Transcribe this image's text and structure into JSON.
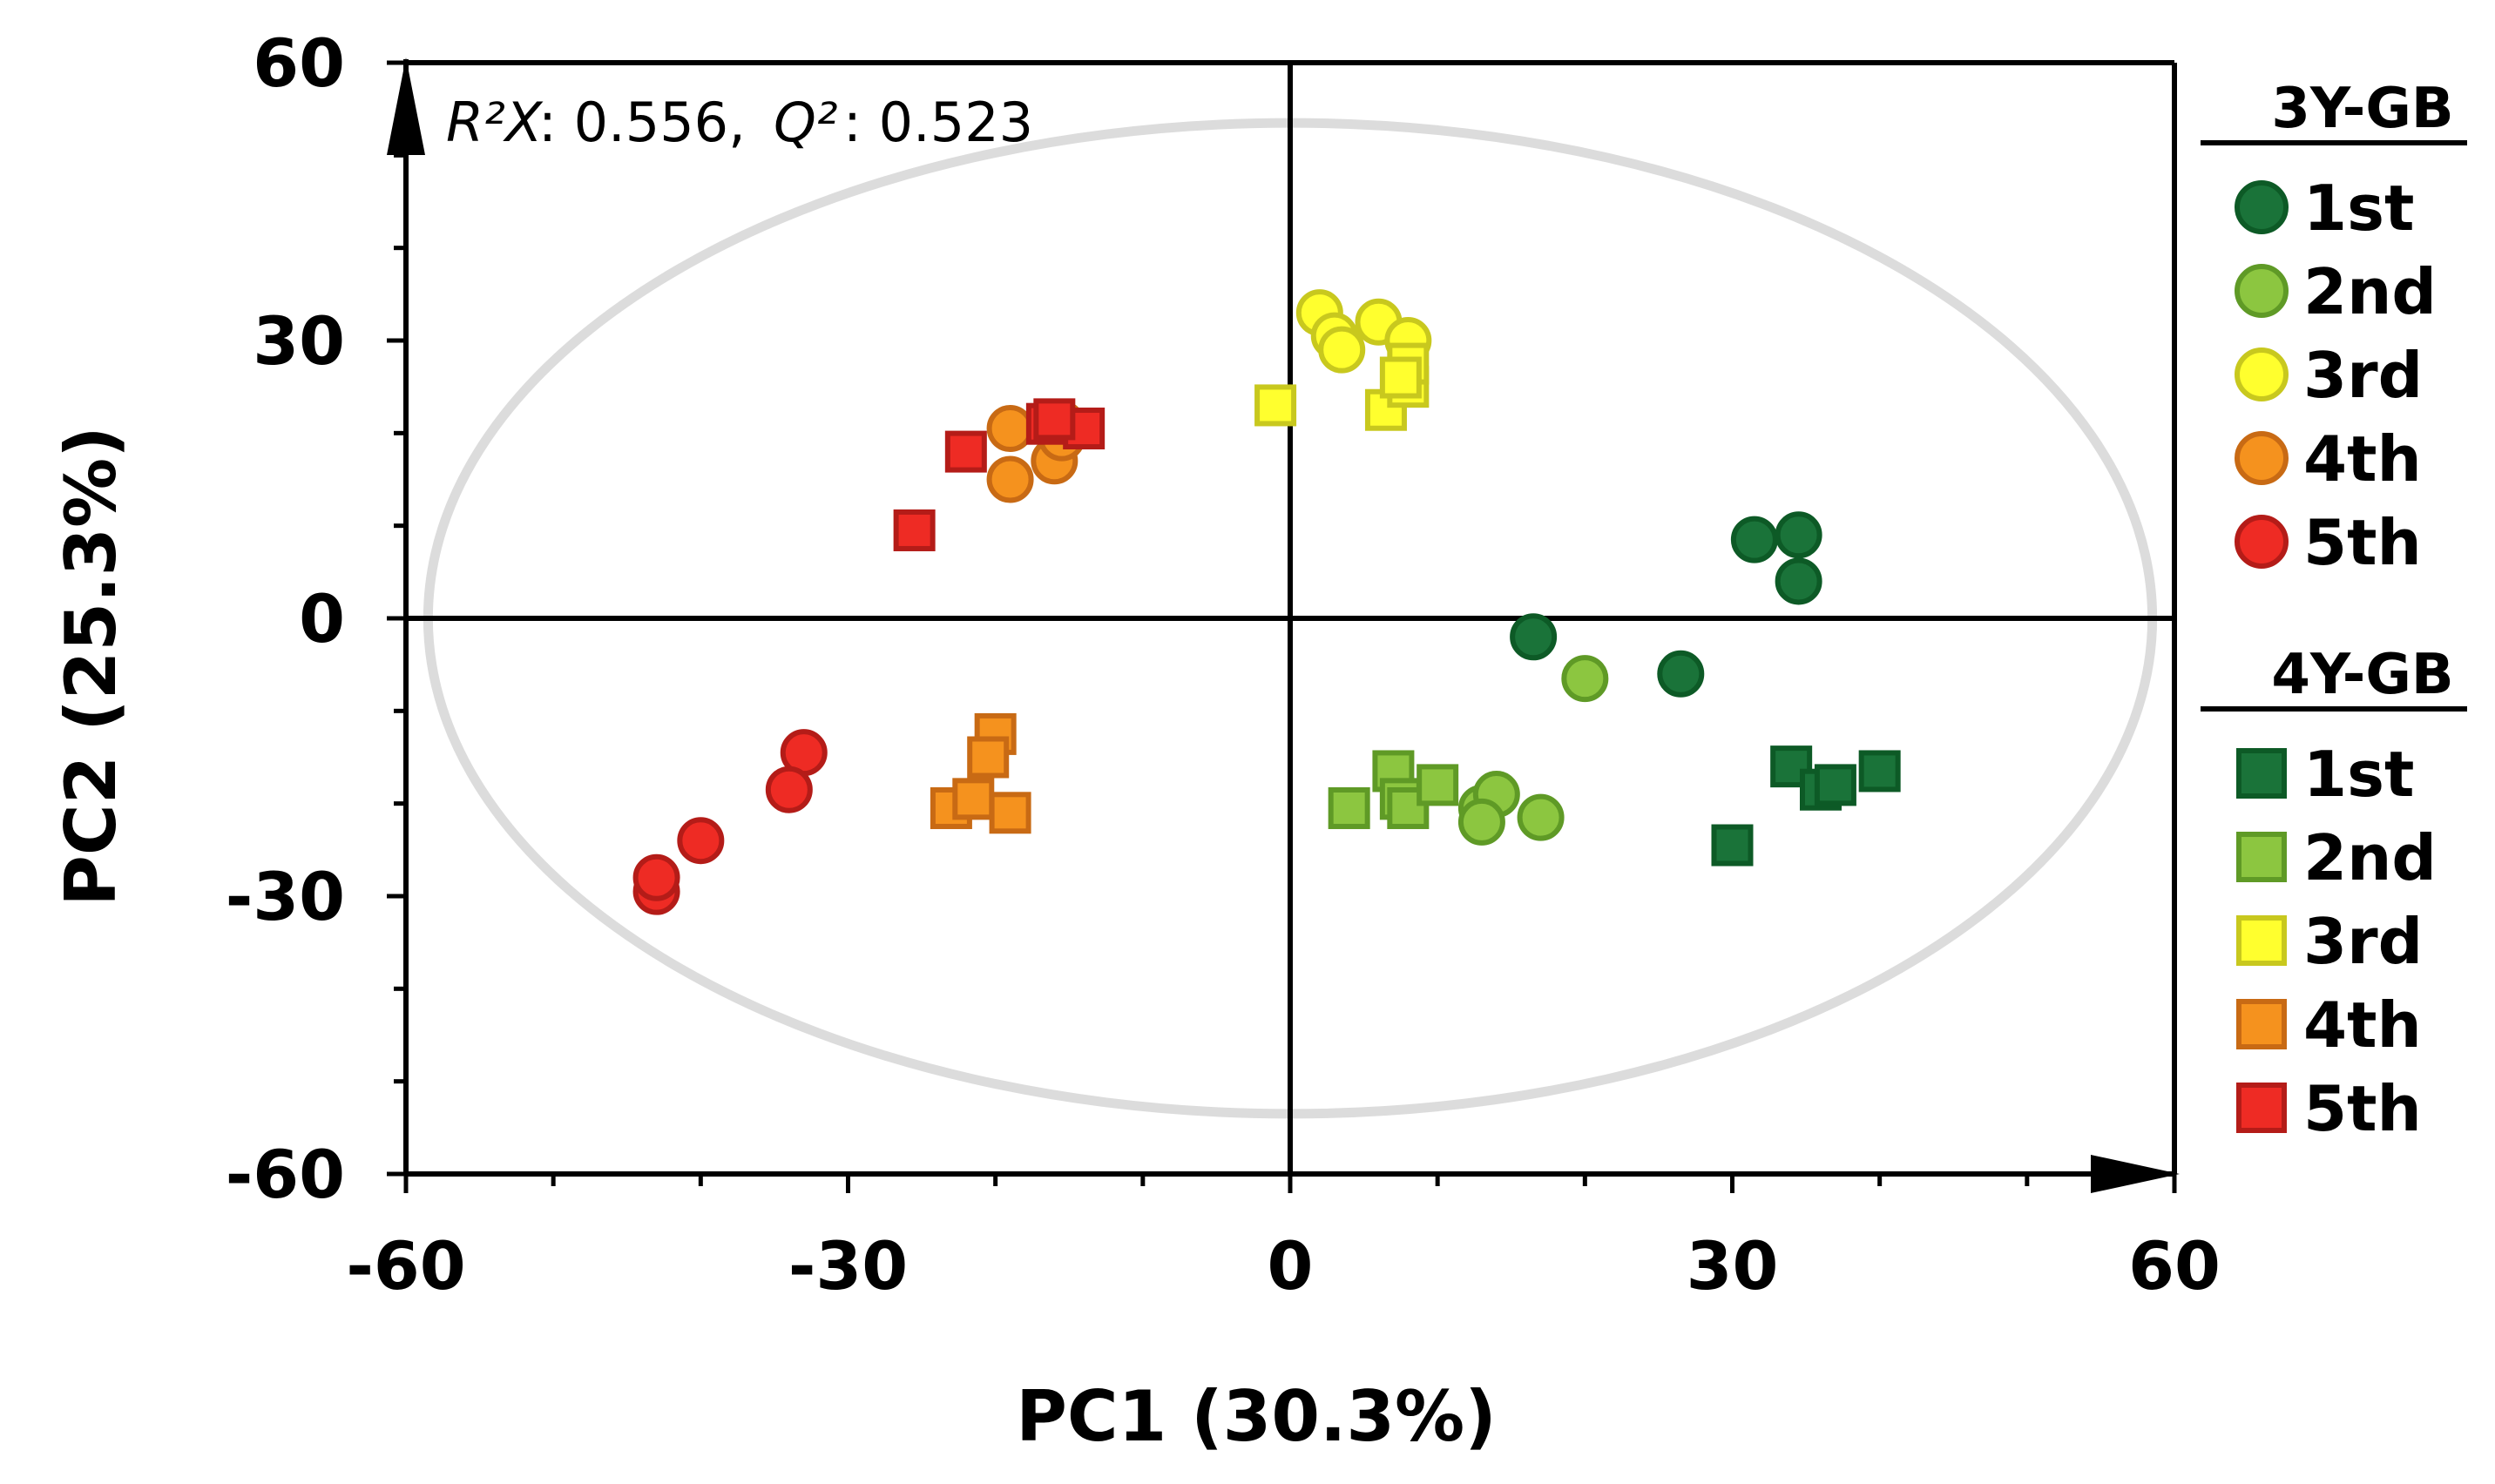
{
  "chart_data": {
    "type": "scatter",
    "title": "",
    "xlabel": "PC1 (30.3%)",
    "ylabel": "PC2 (25.3%)",
    "xlim": [
      -60,
      60
    ],
    "ylim": [
      -60,
      60
    ],
    "xticks": [
      "-60",
      "-30",
      "0",
      "30",
      "60"
    ],
    "yticks": [
      "60",
      "30",
      "0",
      "-30",
      "-60"
    ],
    "xtick_values": [
      -60,
      -30,
      0,
      30,
      60
    ],
    "ytick_values": [
      60,
      30,
      0,
      -30,
      -60
    ],
    "annotation": {
      "r2x_label": "R²X",
      "r2x_value": ": 0.556,",
      "q2_label": "Q²",
      "q2_value": ": 0.523"
    },
    "ellipse": {
      "center": [
        0,
        0
      ],
      "rx": 58.5,
      "ry": 53.5,
      "color": "#dcdcdc"
    },
    "legend_position": "right",
    "legend_groups": [
      {
        "title": "3Y-GB",
        "marker": "circle"
      },
      {
        "title": "4Y-GB",
        "marker": "square"
      }
    ],
    "series": [
      {
        "name": "1st",
        "group": "3Y-GB",
        "marker": "circle",
        "fill": "#1a7339",
        "stroke": "#0d5a26",
        "points": [
          [
            16.5,
            -2
          ],
          [
            26.5,
            -6
          ],
          [
            31.5,
            8.5
          ],
          [
            34.5,
            9
          ],
          [
            34.5,
            4
          ]
        ]
      },
      {
        "name": "2nd",
        "group": "3Y-GB",
        "marker": "circle",
        "fill": "#8cc640",
        "stroke": "#5f9a26",
        "points": [
          [
            20,
            -6.5
          ],
          [
            13,
            -20.5
          ],
          [
            14,
            -19
          ],
          [
            17,
            -21.5
          ],
          [
            13,
            -22
          ]
        ]
      },
      {
        "name": "3rd",
        "group": "3Y-GB",
        "marker": "circle",
        "fill": "#ffff2e",
        "stroke": "#c8c81e",
        "points": [
          [
            2,
            33
          ],
          [
            3,
            30.5
          ],
          [
            3.5,
            29
          ],
          [
            6,
            32
          ],
          [
            8,
            30
          ]
        ]
      },
      {
        "name": "4th",
        "group": "3Y-GB",
        "marker": "circle",
        "fill": "#f5921e",
        "stroke": "#c86a14",
        "points": [
          [
            -19,
            20.5
          ],
          [
            -19,
            15
          ],
          [
            -16,
            17
          ],
          [
            -15.5,
            21
          ],
          [
            -15.5,
            19.5
          ]
        ]
      },
      {
        "name": "5th",
        "group": "3Y-GB",
        "marker": "circle",
        "fill": "#ee2b24",
        "stroke": "#b41c18",
        "points": [
          [
            -33,
            -14.5
          ],
          [
            -34,
            -18.5
          ],
          [
            -40,
            -24
          ],
          [
            -43,
            -29.5
          ],
          [
            -43,
            -28
          ]
        ]
      },
      {
        "name": "1st",
        "group": "4Y-GB",
        "marker": "square",
        "fill": "#1a7339",
        "stroke": "#0d5a26",
        "points": [
          [
            34,
            -16
          ],
          [
            36,
            -18.5
          ],
          [
            37,
            -18
          ],
          [
            40,
            -16.5
          ],
          [
            30,
            -24.5
          ]
        ]
      },
      {
        "name": "2nd",
        "group": "4Y-GB",
        "marker": "square",
        "fill": "#8cc640",
        "stroke": "#5f9a26",
        "points": [
          [
            4,
            -20.5
          ],
          [
            7,
            -16.5
          ],
          [
            7.5,
            -19.5
          ],
          [
            8,
            -20.5
          ],
          [
            10,
            -18
          ]
        ]
      },
      {
        "name": "3rd",
        "group": "4Y-GB",
        "marker": "square",
        "fill": "#ffff2e",
        "stroke": "#c8c81e",
        "points": [
          [
            -1,
            23
          ],
          [
            6.5,
            22.5
          ],
          [
            8,
            25
          ],
          [
            8,
            27.5
          ],
          [
            7.5,
            26
          ]
        ]
      },
      {
        "name": "4th",
        "group": "4Y-GB",
        "marker": "square",
        "fill": "#f5921e",
        "stroke": "#c86a14",
        "points": [
          [
            -20,
            -12.5
          ],
          [
            -20.5,
            -15
          ],
          [
            -23,
            -20.5
          ],
          [
            -21.5,
            -19.5
          ],
          [
            -19,
            -21
          ]
        ]
      },
      {
        "name": "5th",
        "group": "4Y-GB",
        "marker": "square",
        "fill": "#ee2b24",
        "stroke": "#b41c18",
        "points": [
          [
            -25.5,
            9.5
          ],
          [
            -22,
            18
          ],
          [
            -16.5,
            21
          ],
          [
            -14,
            20.5
          ],
          [
            -16,
            21.5
          ]
        ]
      }
    ]
  }
}
